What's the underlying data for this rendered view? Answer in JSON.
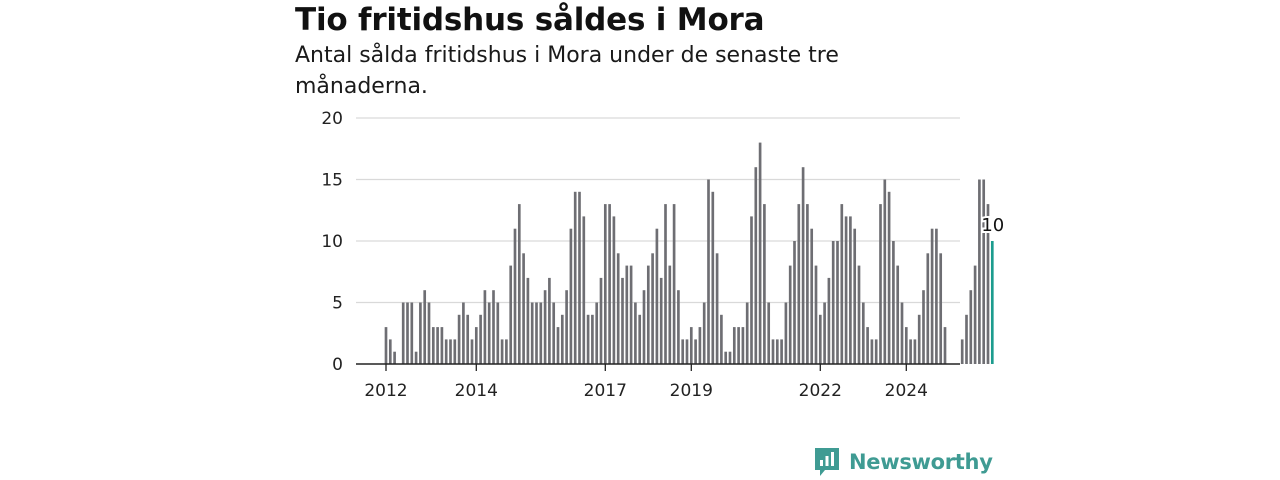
{
  "title": "Tio fritidshus såldes i Mora",
  "subtitle": "Antal sålda fritidshus i Mora under de senaste tre månaderna.",
  "brand": {
    "name": "Newsworthy",
    "icon": "bar-chart-speech-bubble-icon"
  },
  "colors": {
    "bar": "#6e6e73",
    "highlight": "#1c9c8e",
    "grid": "#d9d9d9",
    "axis": "#222222",
    "brand": "#3f9b93"
  },
  "chart_data": {
    "type": "bar",
    "title": "Tio fritidshus såldes i Mora",
    "subtitle": "Antal sålda fritidshus i Mora under de senaste tre månaderna.",
    "xlabel": "",
    "ylabel": "",
    "ylim": [
      0,
      20
    ],
    "yticks": [
      0,
      5,
      10,
      15,
      20
    ],
    "xticks": [
      {
        "label": "2012",
        "index": 0
      },
      {
        "label": "2014",
        "index": 21
      },
      {
        "label": "2017",
        "index": 51
      },
      {
        "label": "2019",
        "index": 71
      },
      {
        "label": "2022",
        "index": 101
      },
      {
        "label": "2024",
        "index": 121
      }
    ],
    "grid": true,
    "series": [
      {
        "values": [
          3,
          2,
          1,
          0,
          5,
          5,
          5,
          1,
          5,
          6,
          5,
          3,
          3,
          3,
          2,
          2,
          2,
          4,
          5,
          4,
          2,
          3,
          4,
          6,
          5,
          6,
          5,
          2,
          2,
          8,
          11,
          13,
          9,
          7,
          5,
          5,
          5,
          6,
          7,
          5,
          3,
          4,
          6,
          11,
          14,
          14,
          12,
          4,
          4,
          5,
          7,
          13,
          13,
          12,
          9,
          7,
          8,
          8,
          5,
          4,
          6,
          8,
          9,
          11,
          7,
          13,
          8,
          13,
          6,
          2,
          2,
          3,
          2,
          3,
          5,
          15,
          14,
          9,
          4,
          1,
          1,
          3,
          3,
          3,
          5,
          12,
          16,
          18,
          13,
          5,
          2,
          2,
          2,
          5,
          8,
          10,
          13,
          16,
          13,
          11,
          8,
          4,
          5,
          7,
          10,
          10,
          13,
          12,
          12,
          11,
          8,
          5,
          3,
          2,
          2,
          13,
          15,
          14,
          10,
          8,
          5,
          3,
          2,
          2,
          4,
          6,
          9,
          11,
          11,
          9,
          3,
          0,
          0,
          0,
          2,
          4,
          6,
          8,
          15,
          15,
          13,
          10
        ],
        "highlight_last": true,
        "last_label": "10"
      }
    ]
  }
}
